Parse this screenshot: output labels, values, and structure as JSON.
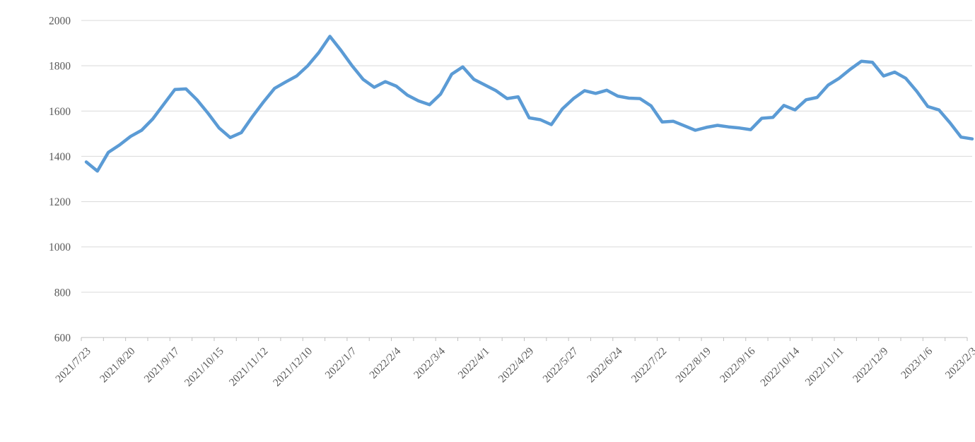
{
  "chart": {
    "background_color": "#FFFFFF",
    "line_color": "#5B9BD5",
    "gridline_color": "#D9D9D9",
    "axis_color": "#BFBFBF",
    "label_color": "#595959"
  },
  "chart_data": {
    "type": "line",
    "title": "",
    "xlabel": "",
    "ylabel": "",
    "legend": false,
    "grid": true,
    "ylim": [
      600,
      2000
    ],
    "y_ticks": [
      600,
      800,
      1000,
      1200,
      1400,
      1600,
      1800,
      2000
    ],
    "x_tick_labels": [
      "2021/7/23",
      "2021/8/20",
      "2021/9/17",
      "2021/10/15",
      "2021/11/12",
      "2021/12/10",
      "2022/1/7",
      "2022/2/4",
      "2022/3/4",
      "2022/4/1",
      "2022/4/29",
      "2022/5/27",
      "2022/6/24",
      "2022/7/22",
      "2022/8/19",
      "2022/9/16",
      "2022/10/14",
      "2022/11/11",
      "2022/12/9",
      "2023/1/6",
      "2023/2/3"
    ],
    "points_per_label": 4,
    "x_interval": "weekly",
    "values": [
      1375,
      1335,
      1418,
      1450,
      1488,
      1515,
      1565,
      1630,
      1695,
      1698,
      1650,
      1590,
      1525,
      1483,
      1505,
      1575,
      1640,
      1700,
      1728,
      1755,
      1800,
      1858,
      1930,
      1868,
      1800,
      1740,
      1705,
      1730,
      1710,
      1670,
      1645,
      1628,
      1675,
      1763,
      1795,
      1740,
      1715,
      1690,
      1655,
      1663,
      1570,
      1562,
      1540,
      1610,
      1655,
      1690,
      1678,
      1692,
      1666,
      1657,
      1655,
      1623,
      1552,
      1555,
      1535,
      1515,
      1528,
      1537,
      1530,
      1525,
      1518,
      1568,
      1572,
      1625,
      1605,
      1650,
      1660,
      1715,
      1745,
      1785,
      1820,
      1815,
      1755,
      1772,
      1745,
      1687,
      1620,
      1605,
      1548,
      1485,
      1477
    ]
  }
}
